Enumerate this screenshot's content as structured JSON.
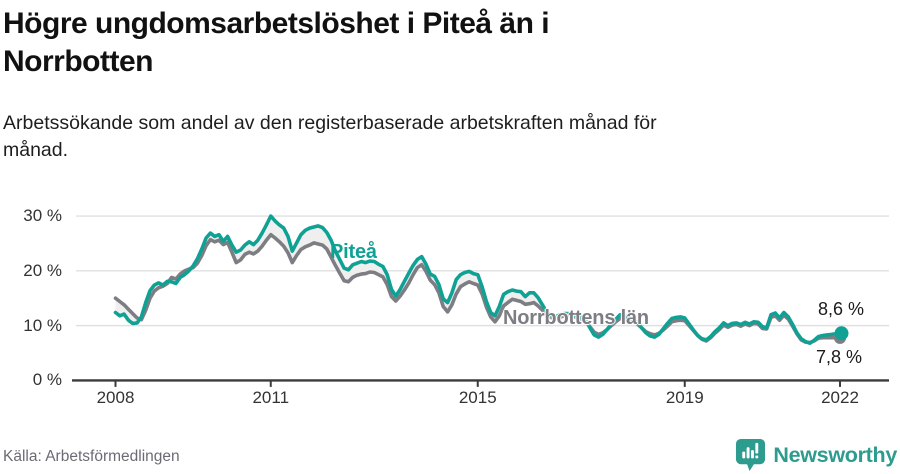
{
  "header": {
    "title": "Högre ungdomsarbetslöshet i Piteå än i Norrbotten",
    "title_lines": [
      "Högre ungdomsarbetslöshet i Piteå än i",
      "Norrbotten"
    ],
    "subtitle": "Arbetssökande som andel av den registerbaserade arbetskraften månad för månad.",
    "subtitle_lines": [
      "Arbetssökande som andel av den registerbaserade arbetskraften månad för",
      "månad."
    ]
  },
  "chart_data": {
    "type": "line",
    "title": "Högre ungdomsarbetslöshet i Piteå än i Norrbotten",
    "subtitle": "Arbetssökande som andel av den registerbaserade arbetskraften månad för månad.",
    "frequency": "monthly",
    "x_axis": {
      "ticks": [
        2008,
        2011,
        2015,
        2019,
        2022
      ],
      "tick_labels": [
        "2008",
        "2011",
        "2015",
        "2019",
        "2022"
      ],
      "range": [
        2008,
        2022.1
      ]
    },
    "y_axis": {
      "unit": "%",
      "range": [
        0,
        31
      ],
      "grid": true,
      "ticks": [
        {
          "value": 0,
          "label": "0 %"
        },
        {
          "value": 10,
          "label": "10 %"
        },
        {
          "value": 20,
          "label": "20 %"
        },
        {
          "value": 30,
          "label": "30 %"
        }
      ]
    },
    "legend_position": "inline-labels",
    "band_color": "#efefef",
    "grid_color": "#e0e0e0",
    "axis_color": "#3b3b3b",
    "tick_text_color": "#333333",
    "end_labels": [
      {
        "series": "Piteå",
        "text": "8,6 %"
      },
      {
        "series": "Norrbottens län",
        "text": "7,8 %"
      }
    ],
    "series": [
      {
        "name": "Piteå",
        "color": "#10a195",
        "start": 2008.0,
        "step_months": 1,
        "end_value": 8.6,
        "end_value_label": "8,6 %",
        "values": [
          12.4,
          11.8,
          12.1,
          11.0,
          10.4,
          10.5,
          11.6,
          14.2,
          16.4,
          17.4,
          17.8,
          17.4,
          18.1,
          18.0,
          17.7,
          18.8,
          19.3,
          20.0,
          20.9,
          22.2,
          24.0,
          26.0,
          26.9,
          26.3,
          26.6,
          25.4,
          26.3,
          24.7,
          23.4,
          23.8,
          24.7,
          25.3,
          24.8,
          25.6,
          26.9,
          28.4,
          30.0,
          29.1,
          28.4,
          27.8,
          26.3,
          23.6,
          25.1,
          26.6,
          27.4,
          27.8,
          28.0,
          28.2,
          27.9,
          27.0,
          25.6,
          23.6,
          22.1,
          20.5,
          20.2,
          21.1,
          21.4,
          21.7,
          21.5,
          21.8,
          21.7,
          21.2,
          20.8,
          19.3,
          16.6,
          15.4,
          16.6,
          18.1,
          19.6,
          21.0,
          22.1,
          22.6,
          21.2,
          19.4,
          19.0,
          17.5,
          14.9,
          14.2,
          16.0,
          18.4,
          19.3,
          19.7,
          19.9,
          19.5,
          19.3,
          17.1,
          14.4,
          12.4,
          11.8,
          13.5,
          15.7,
          16.2,
          16.5,
          16.3,
          16.2,
          15.3,
          16.0,
          16.0,
          15.1,
          13.8,
          12.5,
          11.9,
          11.6,
          12.0,
          12.2,
          12.2,
          12.0,
          11.8,
          11.5,
          11.0,
          9.6,
          8.3,
          7.9,
          8.4,
          9.3,
          10.3,
          11.2,
          12.0,
          11.8,
          11.5,
          11.2,
          10.6,
          9.6,
          8.7,
          8.1,
          7.9,
          8.4,
          9.4,
          10.4,
          11.3,
          11.5,
          11.6,
          11.4,
          10.3,
          9.2,
          8.2,
          7.6,
          7.4,
          8.0,
          8.9,
          9.6,
          10.5,
          10.0,
          10.4,
          10.5,
          10.2,
          10.6,
          10.3,
          10.7,
          10.6,
          9.8,
          9.6,
          12.0,
          12.3,
          11.4,
          12.4,
          11.6,
          10.2,
          8.7,
          7.6,
          7.1,
          6.8,
          7.3,
          8.0,
          8.2,
          8.3,
          8.4,
          8.5,
          8.6
        ]
      },
      {
        "name": "Norrbottens län",
        "color": "#7d7d84",
        "start": 2008.0,
        "step_months": 1,
        "end_value": 7.8,
        "end_value_label": "7,8 %",
        "values": [
          15.0,
          14.4,
          13.8,
          13.0,
          12.2,
          11.4,
          11.1,
          12.8,
          15.0,
          16.3,
          16.9,
          17.2,
          17.7,
          18.8,
          18.5,
          19.4,
          20.0,
          20.3,
          20.6,
          21.4,
          22.8,
          24.6,
          25.7,
          25.3,
          25.6,
          24.8,
          25.2,
          23.4,
          21.5,
          22.0,
          23.0,
          23.4,
          23.1,
          23.6,
          24.5,
          25.6,
          26.6,
          26.0,
          25.3,
          24.5,
          23.3,
          21.5,
          22.8,
          23.9,
          24.4,
          24.7,
          25.1,
          24.9,
          24.7,
          24.0,
          22.5,
          21.0,
          19.6,
          18.2,
          18.0,
          18.8,
          19.2,
          19.4,
          19.5,
          19.8,
          19.7,
          19.3,
          18.9,
          17.5,
          15.3,
          14.5,
          15.4,
          16.5,
          17.8,
          19.3,
          20.6,
          21.1,
          19.9,
          18.3,
          17.5,
          16.0,
          13.5,
          12.5,
          13.8,
          15.8,
          17.1,
          17.6,
          18.0,
          17.7,
          17.4,
          15.8,
          13.4,
          11.6,
          10.7,
          11.8,
          13.6,
          14.2,
          14.8,
          14.6,
          14.4,
          13.9,
          14.0,
          14.2,
          13.6,
          12.8,
          12.0,
          11.5,
          11.2,
          11.5,
          11.8,
          11.9,
          11.7,
          11.5,
          11.2,
          10.8,
          9.8,
          8.8,
          8.4,
          8.7,
          9.3,
          10.0,
          10.7,
          11.3,
          11.2,
          11.0,
          10.8,
          10.3,
          9.6,
          8.9,
          8.5,
          8.3,
          8.6,
          9.2,
          9.9,
          10.7,
          10.9,
          11.0,
          10.9,
          10.0,
          9.1,
          8.2,
          7.5,
          7.2,
          7.8,
          8.6,
          9.3,
          10.1,
          9.7,
          10.1,
          10.2,
          9.9,
          10.3,
          10.0,
          10.4,
          10.3,
          9.5,
          9.4,
          11.5,
          11.8,
          11.0,
          11.9,
          11.2,
          9.9,
          8.5,
          7.4,
          7.0,
          6.9,
          7.2,
          7.7,
          7.8,
          7.8,
          7.8,
          7.8,
          7.8
        ]
      }
    ]
  },
  "footer": {
    "source": "Källa: Arbetsförmedlingen",
    "brand": "Newsworthy",
    "brand_color": "#2d9b8e",
    "brand_icon": "newsworthy-chart-bubble-icon"
  }
}
